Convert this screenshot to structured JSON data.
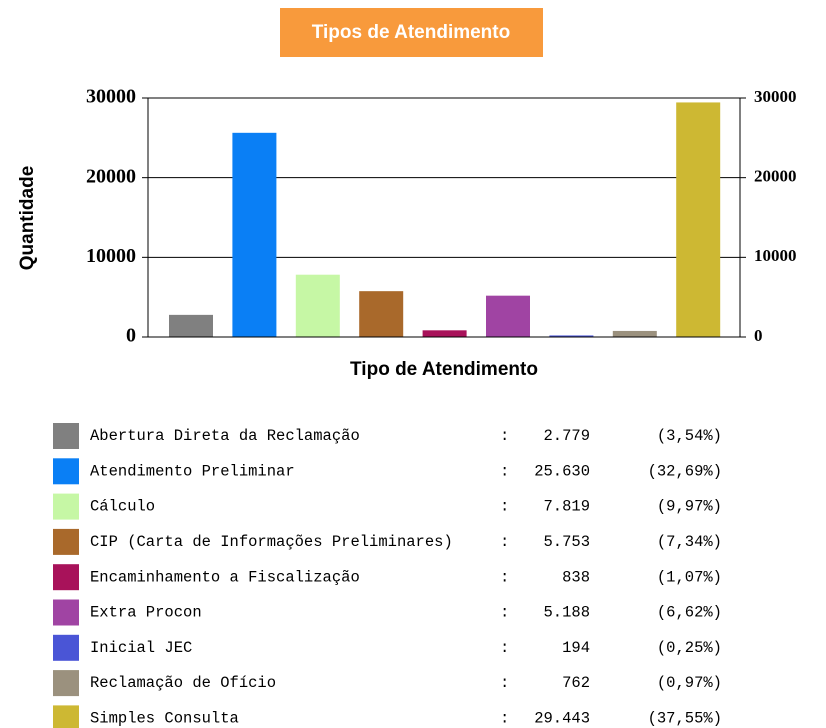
{
  "chart_data": {
    "type": "bar",
    "title": "Tipos de Atendimento",
    "xlabel": "Tipo de Atendimento",
    "ylabel": "Quantidade",
    "categories": [
      "Abertura Direta da Reclamação",
      "Atendimento Preliminar",
      "Cálculo",
      "CIP (Carta de Informações Preliminares)",
      "Encaminhamento a Fiscalização",
      "Extra Procon",
      "Inicial JEC",
      "Reclamação de Ofício",
      "Simples Consulta"
    ],
    "values": [
      2779,
      25630,
      7819,
      5753,
      838,
      5188,
      194,
      762,
      29443
    ],
    "value_labels": [
      "2.779",
      "25.630",
      "7.819",
      "5.753",
      "838",
      "5.188",
      "194",
      "762",
      "29.443"
    ],
    "percent_labels": [
      "(3,54%)",
      "(32,69%)",
      "(9,97%)",
      "(7,34%)",
      "(1,07%)",
      "(6,62%)",
      "(0,25%)",
      "(0,97%)",
      "(37,55%)"
    ],
    "colors": [
      "#808080",
      "#0a7ff5",
      "#c6f7a5",
      "#a9692b",
      "#a8125a",
      "#a044a3",
      "#4a55d6",
      "#9b917e",
      "#cdb833"
    ],
    "ylim": [
      0,
      30000
    ],
    "yticks": [
      0,
      10000,
      20000,
      30000
    ],
    "y2lim": [
      0,
      30000
    ],
    "y2ticks": [
      0,
      10000,
      20000,
      30000
    ],
    "grid": true,
    "legend": "bottom"
  }
}
